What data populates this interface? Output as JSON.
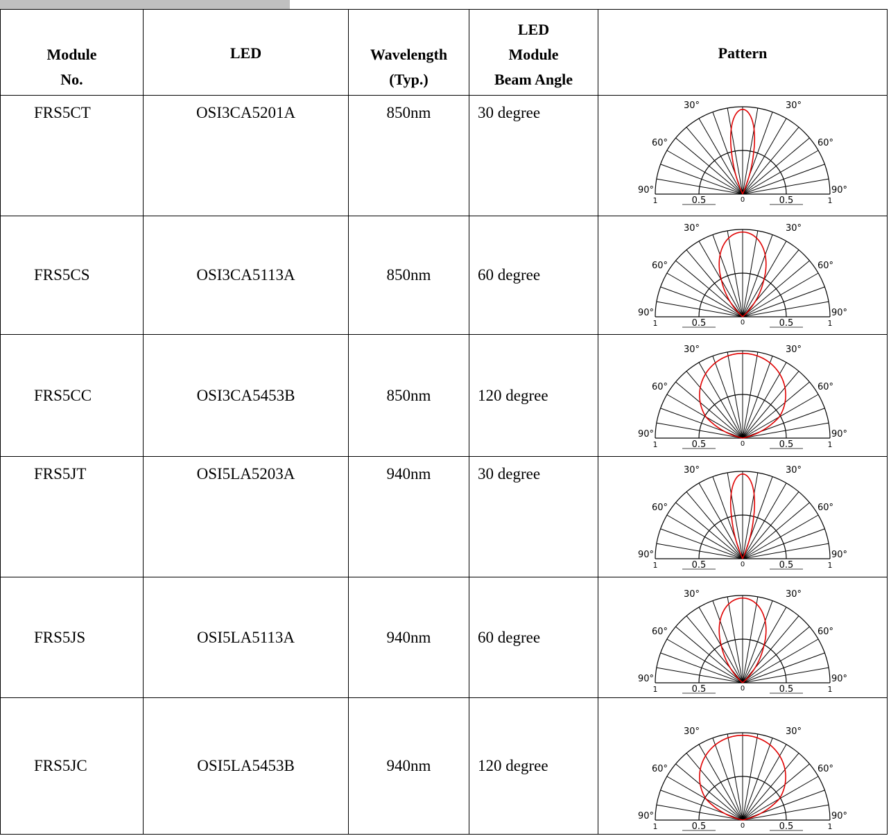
{
  "table": {
    "headers": {
      "module": [
        "Module",
        "No."
      ],
      "led": "LED",
      "wavelength": [
        "Wavelength",
        "(Typ.)"
      ],
      "beam_angle": [
        "LED",
        "Module",
        "Beam Angle"
      ],
      "pattern": "Pattern"
    },
    "rows": [
      {
        "module": "FRS5CT",
        "led": "OSI3CA5201A",
        "wavelength": "850nm",
        "beam_angle": "30 degree",
        "pattern_half_angle": 15
      },
      {
        "module": "FRS5CS",
        "led": "OSI3CA5113A",
        "wavelength": "850nm",
        "beam_angle": "60 degree",
        "pattern_half_angle": 30
      },
      {
        "module": "FRS5CC",
        "led": "OSI3CA5453B",
        "wavelength": "850nm",
        "beam_angle": "120 degree",
        "pattern_half_angle": 60
      },
      {
        "module": "FRS5JT",
        "led": "OSI5LA5203A",
        "wavelength": "940nm",
        "beam_angle": "30 degree",
        "pattern_half_angle": 15
      },
      {
        "module": "FRS5JS",
        "led": "OSI5LA5113A",
        "wavelength": "940nm",
        "beam_angle": "60 degree",
        "pattern_half_angle": 30
      },
      {
        "module": "FRS5JC",
        "led": "OSI5LA5453B",
        "wavelength": "940nm",
        "beam_angle": "120 degree",
        "pattern_half_angle": 60
      }
    ]
  },
  "polar_labels": {
    "angle_30": "30°",
    "angle_60": "60°",
    "angle_90": "90°",
    "radius_outer": "1",
    "radius_mid": "0.5",
    "radius_center": "0"
  },
  "colors": {
    "pattern_curve": "#e00000",
    "grid": "#000000"
  }
}
